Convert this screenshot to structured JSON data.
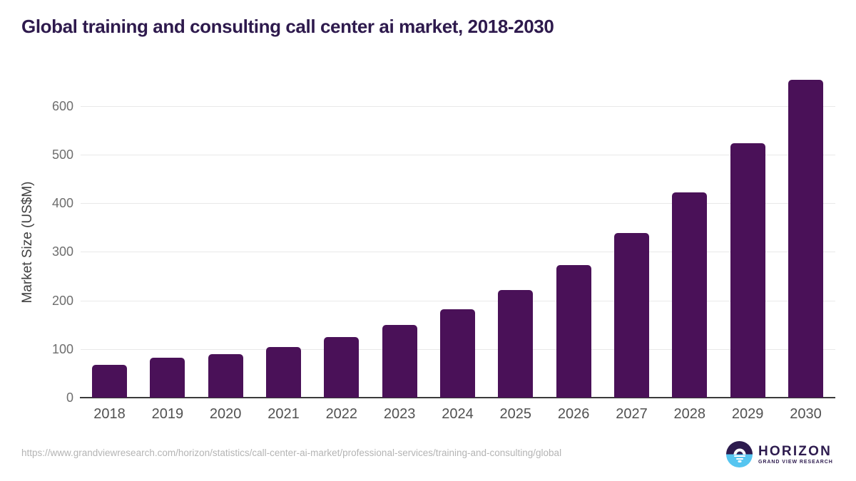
{
  "chart_data": {
    "type": "bar",
    "title": "Global training and consulting call center ai market, 2018-2030",
    "categories": [
      "2018",
      "2019",
      "2020",
      "2021",
      "2022",
      "2023",
      "2024",
      "2025",
      "2026",
      "2027",
      "2028",
      "2029",
      "2030"
    ],
    "values": [
      68,
      82,
      90,
      104,
      125,
      150,
      182,
      221,
      273,
      338,
      422,
      523,
      654
    ],
    "xlabel": "",
    "ylabel": "Market Size (US$M)",
    "yticks": [
      0,
      100,
      200,
      300,
      400,
      500,
      600
    ],
    "ylim": [
      0,
      670
    ],
    "grid": "horizontal-only",
    "legend": "none",
    "bar_color": "#4a1158"
  },
  "footer": {
    "source_url": "https://www.grandviewresearch.com/horizon/statistics/call-center-ai-market/professional-services/training-and-consulting/global",
    "logo": {
      "brand": "HORIZON",
      "sub_brand": "GRAND VIEW RESEARCH",
      "icon": "horizon-sunset-icon"
    }
  },
  "colors": {
    "bar": "#4a1158",
    "title_text": "#2e1a4d",
    "logo_purple": "#2d1b4e",
    "logo_blue": "#56c5f0",
    "axis_line": "#3a3a3a",
    "gridline": "#e9e9e9",
    "y_tick_label": "#6e6e6e",
    "x_tick_label": "#515151",
    "source_text": "#b4b4b4"
  }
}
